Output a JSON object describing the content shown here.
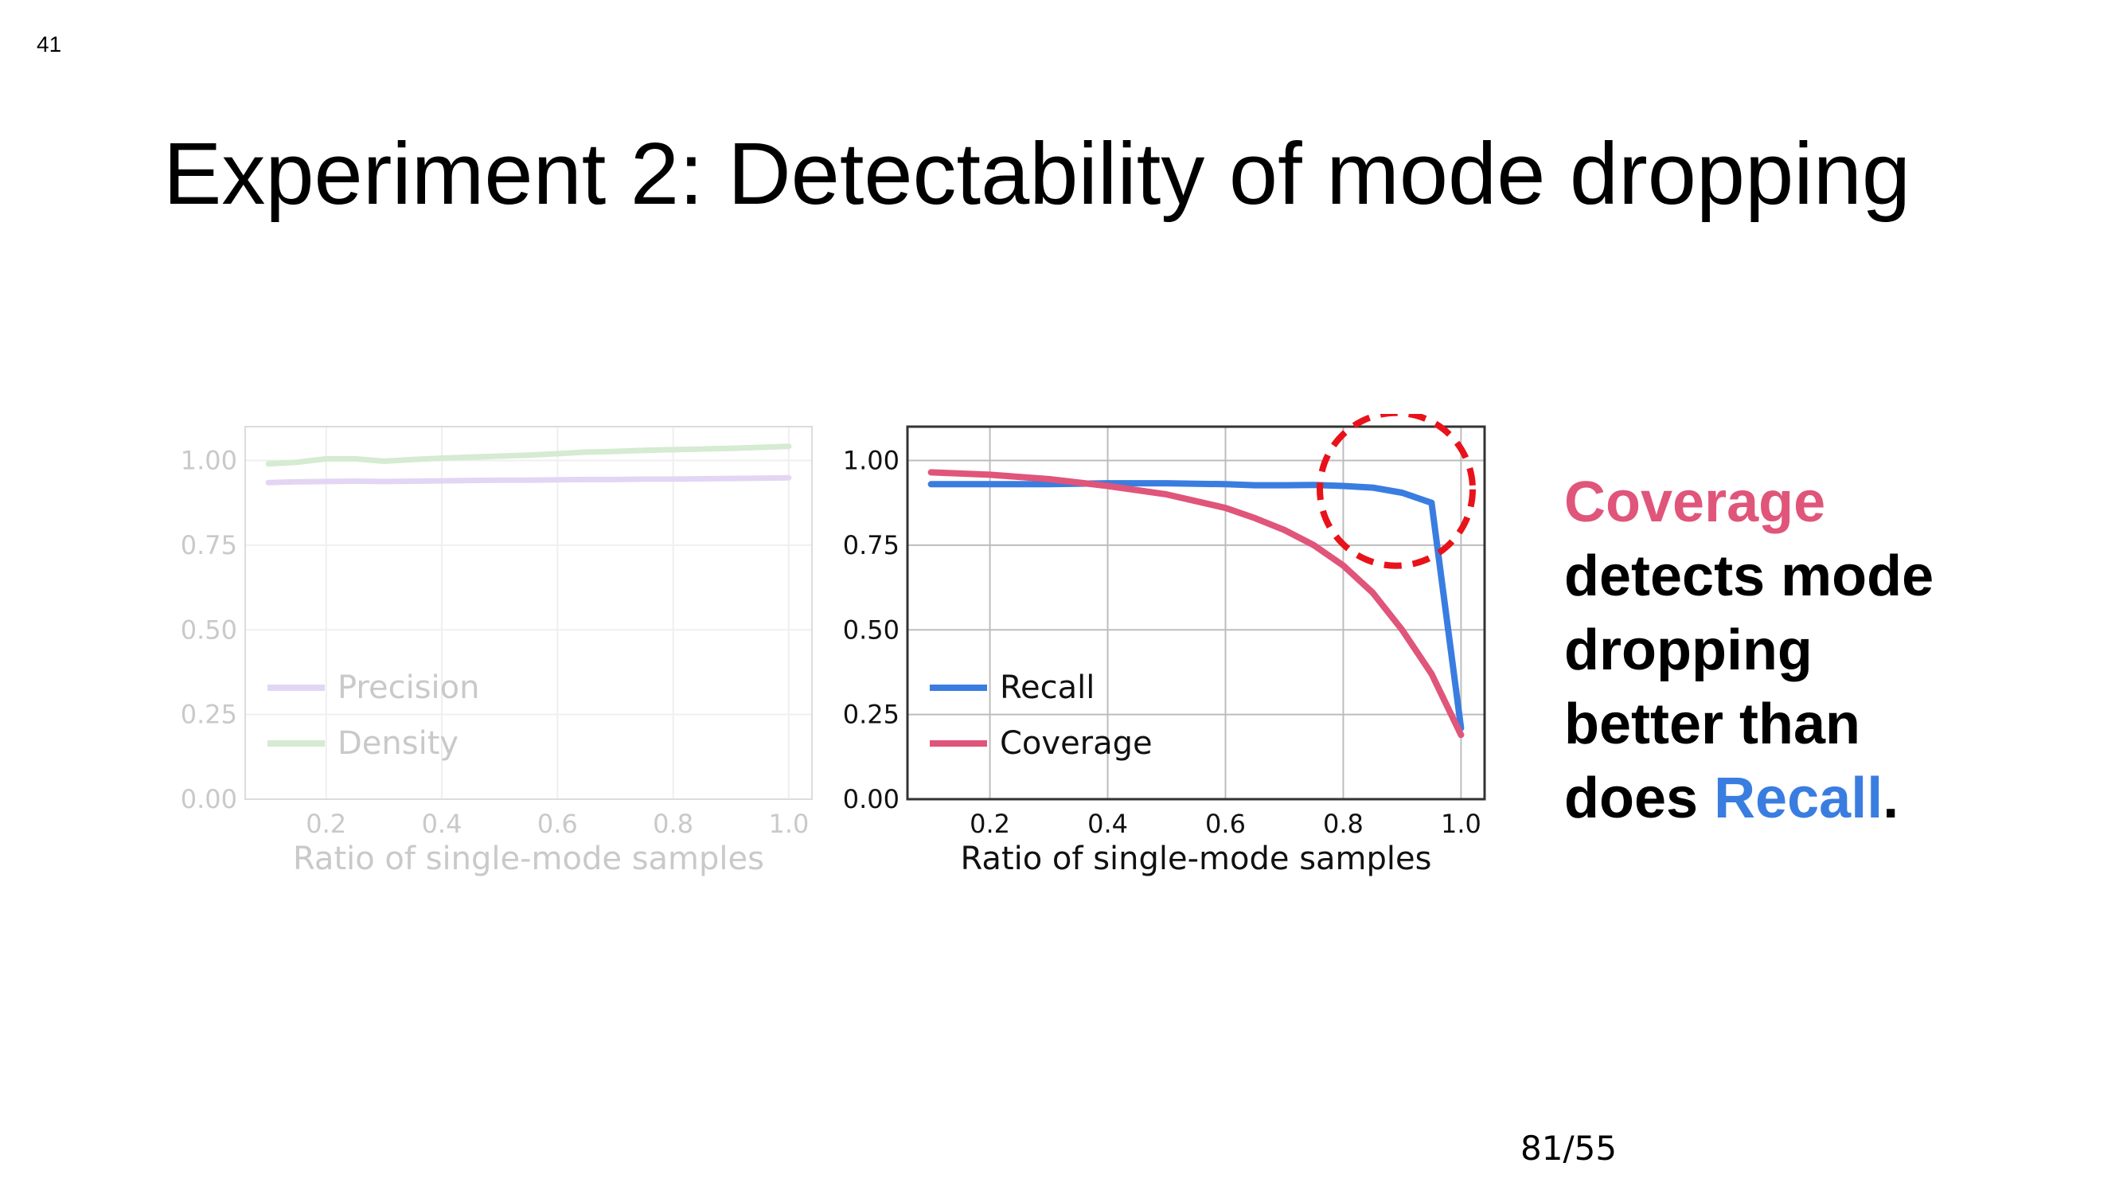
{
  "slide": {
    "number": "41",
    "title": "Experiment 2: Detectability of mode dropping",
    "page": "81/55",
    "text": {
      "line1": "Coverage",
      "line2": "detects mode",
      "line3": "dropping",
      "line4": "better than",
      "line5_prefix": "does ",
      "line5_highlight": "Recall",
      "line5_suffix": "."
    },
    "colors": {
      "coverage": "#e0557a",
      "recall": "#3a7de0"
    }
  },
  "chart_data": [
    {
      "type": "line",
      "faded": true,
      "xlabel": "Ratio of single-mode samples",
      "xlim": [
        0.06,
        1.04
      ],
      "ylim": [
        0,
        1.1
      ],
      "xticks": [
        "0.2",
        "0.4",
        "0.6",
        "0.8",
        "1.0"
      ],
      "yticks": [
        "0.00",
        "0.25",
        "0.50",
        "0.75",
        "1.00"
      ],
      "grid": true,
      "legend_position": "lower-left",
      "series": [
        {
          "name": "Precision",
          "color": "#e3d6f4",
          "x": [
            0.1,
            0.15,
            0.2,
            0.25,
            0.3,
            0.35,
            0.4,
            0.45,
            0.5,
            0.55,
            0.6,
            0.65,
            0.7,
            0.75,
            0.8,
            0.85,
            0.9,
            0.95,
            1.0
          ],
          "y": [
            0.935,
            0.937,
            0.938,
            0.939,
            0.938,
            0.939,
            0.94,
            0.941,
            0.942,
            0.942,
            0.943,
            0.944,
            0.944,
            0.945,
            0.945,
            0.946,
            0.947,
            0.948,
            0.949
          ]
        },
        {
          "name": "Density",
          "color": "#d5ebd2",
          "x": [
            0.1,
            0.15,
            0.2,
            0.25,
            0.3,
            0.35,
            0.4,
            0.45,
            0.5,
            0.55,
            0.6,
            0.65,
            0.7,
            0.75,
            0.8,
            0.85,
            0.9,
            0.95,
            1.0
          ],
          "y": [
            0.99,
            0.995,
            1.005,
            1.005,
            0.998,
            1.003,
            1.007,
            1.01,
            1.013,
            1.016,
            1.02,
            1.025,
            1.027,
            1.03,
            1.032,
            1.034,
            1.036,
            1.039,
            1.042
          ]
        }
      ]
    },
    {
      "type": "line",
      "faded": false,
      "xlabel": "Ratio of single-mode samples",
      "xlim": [
        0.06,
        1.04
      ],
      "ylim": [
        0,
        1.1
      ],
      "xticks": [
        "0.2",
        "0.4",
        "0.6",
        "0.8",
        "1.0"
      ],
      "yticks": [
        "0.00",
        "0.25",
        "0.50",
        "0.75",
        "1.00"
      ],
      "grid": true,
      "legend_position": "lower-left",
      "annotation": {
        "type": "dashed-circle",
        "color": "#e8121b",
        "center": [
          0.89,
          0.915
        ]
      },
      "series": [
        {
          "name": "Recall",
          "color": "#3a7de0",
          "x": [
            0.1,
            0.2,
            0.3,
            0.4,
            0.5,
            0.6,
            0.65,
            0.7,
            0.75,
            0.8,
            0.85,
            0.9,
            0.95,
            1.0
          ],
          "y": [
            0.93,
            0.93,
            0.93,
            0.933,
            0.933,
            0.93,
            0.927,
            0.927,
            0.928,
            0.925,
            0.92,
            0.905,
            0.875,
            0.21
          ]
        },
        {
          "name": "Coverage",
          "color": "#e0557a",
          "x": [
            0.1,
            0.2,
            0.3,
            0.4,
            0.5,
            0.6,
            0.65,
            0.7,
            0.75,
            0.8,
            0.85,
            0.9,
            0.95,
            1.0
          ],
          "y": [
            0.965,
            0.958,
            0.945,
            0.925,
            0.9,
            0.86,
            0.83,
            0.795,
            0.75,
            0.69,
            0.61,
            0.5,
            0.37,
            0.19
          ]
        }
      ]
    }
  ]
}
